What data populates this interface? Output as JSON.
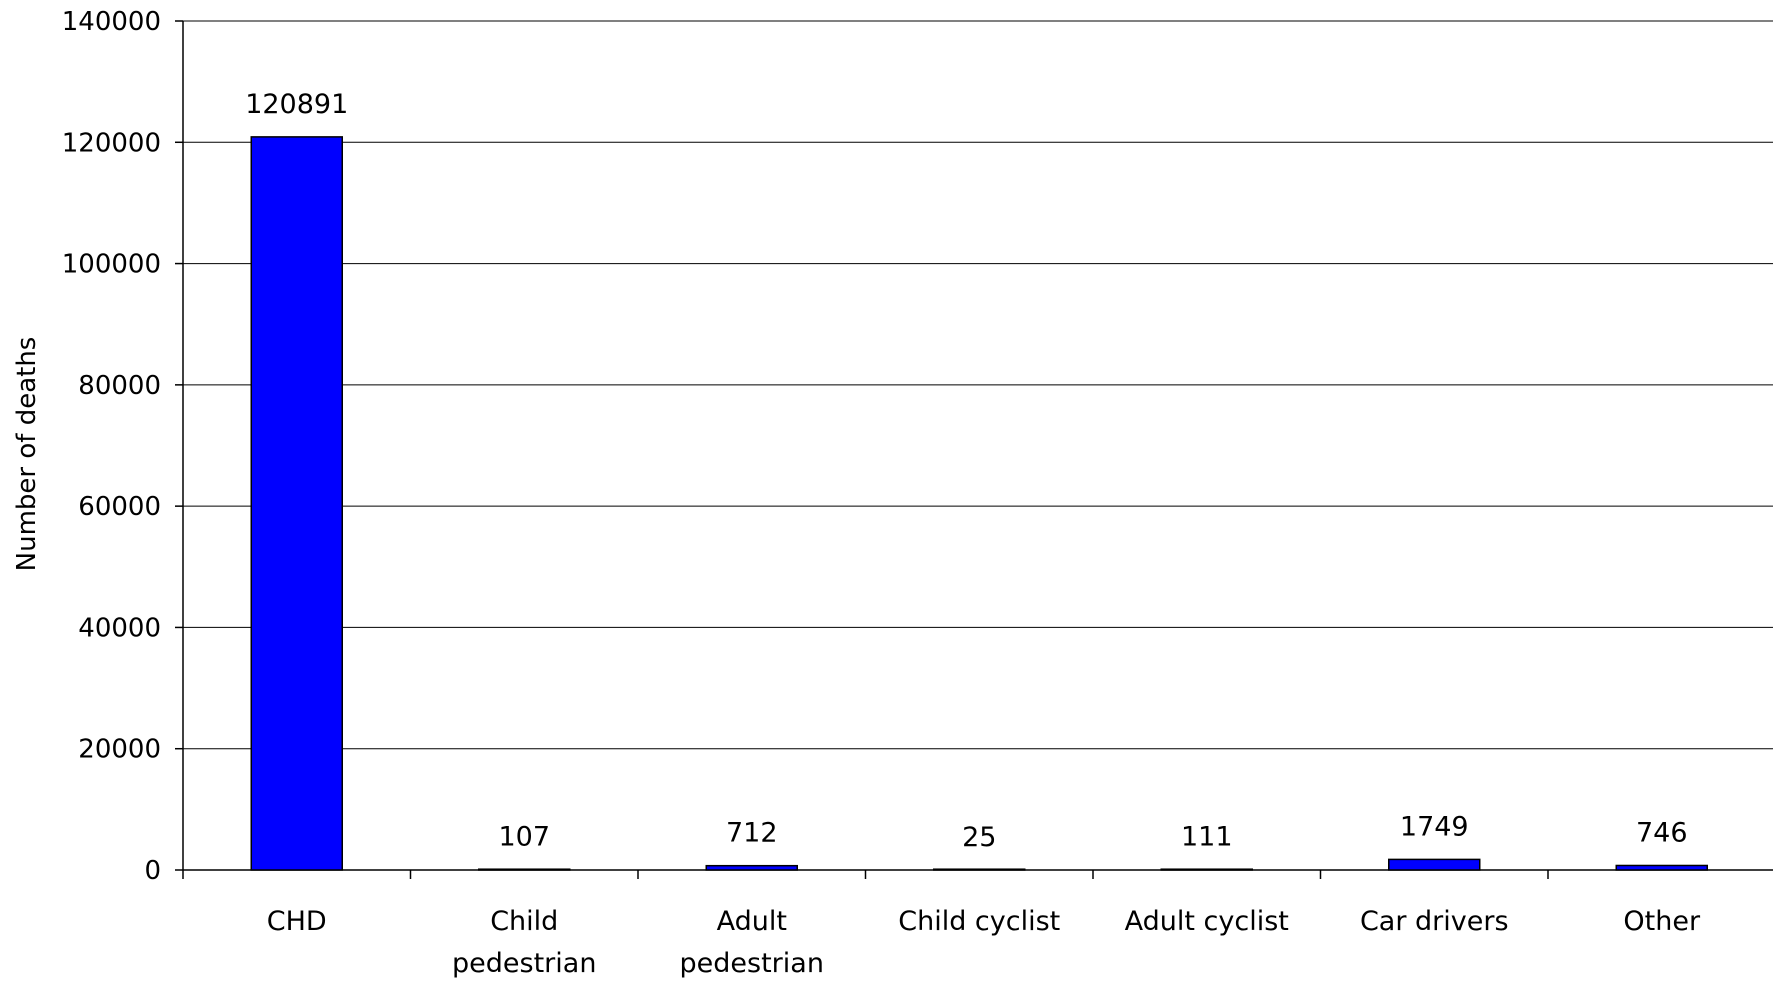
{
  "chart_data": {
    "type": "bar",
    "title": "",
    "xlabel": "",
    "ylabel": "Number of deaths",
    "categories": [
      [
        "CHD"
      ],
      [
        "Child",
        "pedestrian"
      ],
      [
        "Adult",
        "pedestrian"
      ],
      [
        "Child cyclist"
      ],
      [
        "Adult cyclist"
      ],
      [
        "Car drivers"
      ],
      [
        "Other"
      ]
    ],
    "values": [
      120891,
      107,
      712,
      25,
      111,
      1749,
      746
    ],
    "data_labels": [
      "120891",
      "107",
      "712",
      "25",
      "111",
      "1749",
      "746"
    ],
    "ylim": [
      0,
      140000
    ],
    "yticks": [
      0,
      20000,
      40000,
      60000,
      80000,
      100000,
      120000,
      140000
    ],
    "grid": true,
    "legend": "none",
    "colors": {
      "bar_fill": "#0000FF",
      "bar_stroke": "#000000",
      "grid": "#000000"
    }
  }
}
